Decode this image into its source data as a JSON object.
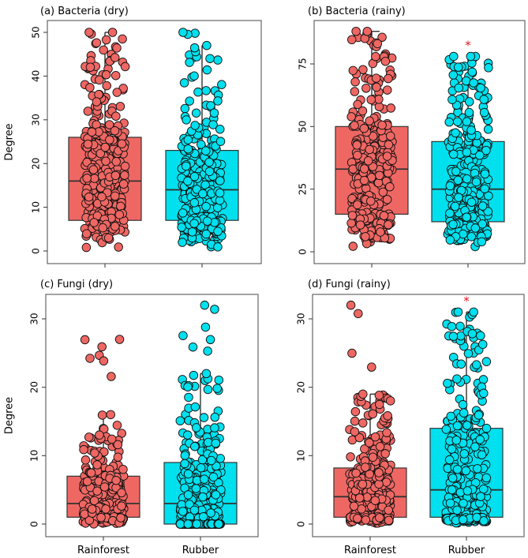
{
  "chart_data": [
    {
      "type": "box",
      "id": "a",
      "title": "(a) Bacteria   (dry)",
      "ylabel": "Degree",
      "xlabel": "",
      "categories": [
        "Rainforest",
        "Rubber"
      ],
      "show_category_labels": false,
      "yticks": [
        0,
        10,
        20,
        30,
        40,
        50
      ],
      "ylim": [
        -1.5,
        53
      ],
      "significance": [
        null,
        null
      ],
      "series": [
        {
          "name": "Rainforest",
          "color": "#EF6763",
          "n": 300,
          "min": 0,
          "q1": 7,
          "median": 16,
          "q3": 26,
          "whisker_high": 50,
          "max": 50
        },
        {
          "name": "Rubber",
          "color": "#00E0EE",
          "n": 300,
          "min": 0,
          "q1": 7,
          "median": 14,
          "q3": 23,
          "whisker_high": 47,
          "max": 50
        }
      ]
    },
    {
      "type": "box",
      "id": "b",
      "title": "(b) Bacteria   (rainy)",
      "ylabel": "",
      "xlabel": "",
      "categories": [
        "Rainforest",
        "Rubber"
      ],
      "show_category_labels": false,
      "yticks": [
        0,
        25,
        50,
        75
      ],
      "ylim": [
        -2.5,
        92
      ],
      "significance": [
        null,
        "*"
      ],
      "series": [
        {
          "name": "Rainforest",
          "color": "#EF6763",
          "n": 300,
          "min": 0,
          "q1": 15,
          "median": 33,
          "q3": 50,
          "whisker_high": 88,
          "max": 88
        },
        {
          "name": "Rubber",
          "color": "#00E0EE",
          "n": 300,
          "min": 0,
          "q1": 12,
          "median": 25,
          "q3": 44,
          "whisker_high": 78,
          "max": 78
        }
      ]
    },
    {
      "type": "box",
      "id": "c",
      "title": "(c) Fungi  (dry)",
      "ylabel": "Degree",
      "xlabel": "",
      "categories": [
        "Rainforest",
        "Rubber"
      ],
      "show_category_labels": true,
      "yticks": [
        0,
        10,
        20,
        30
      ],
      "ylim": [
        -1.8,
        33.5
      ],
      "significance": [
        null,
        null
      ],
      "series": [
        {
          "name": "Rainforest",
          "color": "#EF6763",
          "n": 300,
          "min": 0,
          "q1": 1,
          "median": 3,
          "q3": 7,
          "whisker_high": 16,
          "max": 27
        },
        {
          "name": "Rubber",
          "color": "#00E0EE",
          "n": 300,
          "min": 0,
          "q1": 0,
          "median": 3,
          "q3": 9,
          "whisker_high": 22,
          "max": 32
        }
      ]
    },
    {
      "type": "box",
      "id": "d",
      "title": "(d) Fungi  (rainy)",
      "ylabel": "",
      "xlabel": "",
      "categories": [
        "Rainforest",
        "Rubber"
      ],
      "show_category_labels": true,
      "yticks": [
        0,
        10,
        20,
        30
      ],
      "ylim": [
        -1.8,
        33.5
      ],
      "significance": [
        null,
        "*"
      ],
      "series": [
        {
          "name": "Rainforest",
          "color": "#EF6763",
          "n": 300,
          "min": 0,
          "q1": 1,
          "median": 4,
          "q3": 8.2,
          "whisker_high": 19,
          "max": 32
        },
        {
          "name": "Rubber",
          "color": "#00E0EE",
          "n": 300,
          "min": 0,
          "q1": 1,
          "median": 5,
          "q3": 14,
          "whisker_high": 31,
          "max": 31
        }
      ]
    }
  ],
  "significance_color": "#E8141C"
}
